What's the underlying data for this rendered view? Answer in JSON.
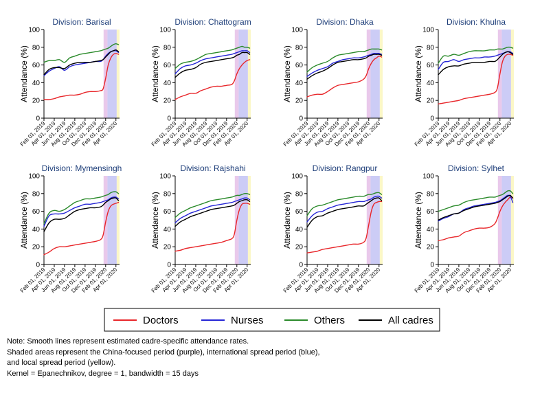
{
  "colors": {
    "doctors": "#e8262a",
    "nurses": "#2525d6",
    "others": "#2a8a2a",
    "all_cadres": "#000000",
    "china_period": "#e8c6ea",
    "international_period": "#c9c9f6",
    "local_period": "#fbf7c4",
    "title": "#1f3f7a"
  },
  "chart_data": {
    "type": "line",
    "ylabel": "Attendance (%)",
    "ylim": [
      0,
      100
    ],
    "yticks": [
      0,
      20,
      40,
      60,
      80,
      100
    ],
    "x_tick_labels": [
      "Feb 01, 2019",
      "Apr 01, 2019",
      "Jun 01, 2019",
      "Aug 01, 2019",
      "Oct 01, 2019",
      "Dec 01, 2019",
      "Feb 01, 2020",
      "Apr 01, 2020"
    ],
    "x_tick_months": [
      0,
      2,
      4,
      6,
      8,
      10,
      12,
      14
    ],
    "xlim_months": [
      0,
      14.7
    ],
    "periods": [
      {
        "name": "China-focused period",
        "color_key": "china_period",
        "start_month": 11.6,
        "end_month": 12.35
      },
      {
        "name": "International spread period",
        "color_key": "international_period",
        "start_month": 12.35,
        "end_month": 14.15
      },
      {
        "name": "Local spread period",
        "color_key": "local_period",
        "start_month": 14.15,
        "end_month": 14.7
      }
    ],
    "legend": {
      "placement": "bottom-center",
      "items": [
        {
          "key": "doctors",
          "label": "Doctors"
        },
        {
          "key": "nurses",
          "label": "Nurses"
        },
        {
          "key": "others",
          "label": "Others"
        },
        {
          "key": "all_cadres",
          "label": "All cadres"
        }
      ]
    },
    "x_months": [
      0,
      1,
      2,
      3,
      4,
      5,
      6,
      7,
      8,
      9,
      10,
      11,
      11.5,
      12,
      12.5,
      13,
      13.5,
      14,
      14.5
    ],
    "panels": [
      {
        "title": "Division: Barisal",
        "series": {
          "doctors": [
            21,
            21,
            22,
            24,
            25,
            26,
            26,
            27,
            29,
            30,
            30,
            31,
            33,
            45,
            60,
            68,
            72,
            73,
            72
          ],
          "nurses": [
            48,
            53,
            56,
            58,
            54,
            58,
            60,
            61,
            62,
            63,
            64,
            64,
            66,
            70,
            73,
            75,
            76,
            76,
            74
          ],
          "others": [
            63,
            65,
            65,
            66,
            63,
            68,
            70,
            72,
            73,
            74,
            75,
            76,
            77,
            78,
            79,
            81,
            83,
            84,
            83
          ],
          "all_cadres": [
            49,
            55,
            57,
            57,
            56,
            60,
            62,
            63,
            63,
            63,
            64,
            65,
            66,
            69,
            72,
            75,
            76,
            77,
            75
          ]
        }
      },
      {
        "title": "Division: Chattogram",
        "series": {
          "doctors": [
            21,
            24,
            26,
            28,
            28,
            31,
            33,
            35,
            36,
            36,
            37,
            38,
            42,
            50,
            56,
            60,
            63,
            65,
            66
          ],
          "nurses": [
            50,
            56,
            59,
            60,
            62,
            65,
            67,
            68,
            69,
            70,
            71,
            72,
            73,
            74,
            75,
            76,
            76,
            76,
            74
          ],
          "others": [
            56,
            61,
            63,
            64,
            66,
            69,
            72,
            73,
            74,
            75,
            76,
            77,
            78,
            79,
            80,
            81,
            80,
            80,
            79
          ],
          "all_cadres": [
            46,
            51,
            54,
            55,
            57,
            61,
            63,
            64,
            65,
            66,
            67,
            68,
            69,
            71,
            72,
            74,
            74,
            74,
            72
          ]
        }
      },
      {
        "title": "Division: Dhaka",
        "series": {
          "doctors": [
            24,
            26,
            27,
            27,
            30,
            34,
            37,
            38,
            39,
            40,
            41,
            44,
            48,
            56,
            62,
            66,
            68,
            70,
            69
          ],
          "nurses": [
            47,
            51,
            54,
            56,
            58,
            62,
            64,
            66,
            67,
            68,
            68,
            69,
            70,
            71,
            72,
            73,
            73,
            73,
            72
          ],
          "others": [
            52,
            57,
            60,
            62,
            64,
            68,
            71,
            72,
            73,
            74,
            75,
            75,
            76,
            77,
            78,
            78,
            78,
            78,
            77
          ],
          "all_cadres": [
            44,
            48,
            51,
            53,
            56,
            60,
            63,
            64,
            65,
            66,
            66,
            67,
            68,
            70,
            71,
            72,
            72,
            72,
            71
          ]
        }
      },
      {
        "title": "Division: Khulna",
        "series": {
          "doctors": [
            16,
            17,
            18,
            19,
            20,
            22,
            23,
            24,
            25,
            26,
            27,
            29,
            34,
            50,
            64,
            70,
            72,
            72,
            71
          ],
          "nurses": [
            55,
            63,
            64,
            66,
            64,
            66,
            67,
            68,
            68,
            69,
            69,
            70,
            71,
            72,
            73,
            74,
            75,
            75,
            73
          ],
          "others": [
            62,
            70,
            70,
            72,
            71,
            73,
            75,
            76,
            76,
            76,
            77,
            77,
            78,
            78,
            78,
            79,
            80,
            80,
            79
          ],
          "all_cadres": [
            49,
            55,
            58,
            59,
            59,
            61,
            62,
            63,
            63,
            63,
            64,
            64,
            66,
            69,
            72,
            74,
            75,
            74,
            72
          ]
        }
      },
      {
        "title": "Division: Mymensingh",
        "series": {
          "doctors": [
            11,
            14,
            18,
            20,
            20,
            21,
            22,
            23,
            24,
            25,
            26,
            28,
            33,
            48,
            60,
            66,
            68,
            69,
            70
          ],
          "nurses": [
            43,
            55,
            57,
            57,
            58,
            61,
            64,
            66,
            68,
            68,
            69,
            70,
            71,
            72,
            73,
            75,
            76,
            76,
            74
          ],
          "others": [
            46,
            58,
            61,
            60,
            62,
            66,
            70,
            72,
            74,
            74,
            75,
            76,
            77,
            78,
            79,
            81,
            82,
            82,
            80
          ],
          "all_cadres": [
            37,
            47,
            51,
            51,
            52,
            56,
            60,
            62,
            63,
            64,
            64,
            65,
            67,
            70,
            72,
            74,
            75,
            75,
            72
          ]
        }
      },
      {
        "title": "Division: Rajshahi",
        "series": {
          "doctors": [
            15,
            16,
            18,
            19,
            20,
            21,
            22,
            23,
            24,
            25,
            27,
            29,
            34,
            50,
            62,
            68,
            69,
            69,
            68
          ],
          "nurses": [
            47,
            52,
            55,
            58,
            60,
            62,
            64,
            66,
            67,
            68,
            69,
            70,
            71,
            72,
            73,
            74,
            75,
            75,
            73
          ],
          "others": [
            53,
            58,
            61,
            64,
            66,
            68,
            70,
            72,
            73,
            74,
            75,
            76,
            77,
            78,
            78,
            79,
            80,
            80,
            79
          ],
          "all_cadres": [
            43,
            48,
            51,
            54,
            56,
            58,
            60,
            62,
            63,
            64,
            65,
            66,
            67,
            69,
            71,
            72,
            73,
            73,
            71
          ]
        }
      },
      {
        "title": "Division: Rangpur",
        "series": {
          "doctors": [
            13,
            14,
            15,
            17,
            18,
            19,
            20,
            21,
            22,
            23,
            23,
            25,
            30,
            45,
            60,
            68,
            70,
            71,
            71
          ],
          "nurses": [
            48,
            55,
            59,
            60,
            63,
            65,
            67,
            68,
            69,
            70,
            71,
            71,
            72,
            73,
            74,
            76,
            77,
            77,
            75
          ],
          "others": [
            55,
            63,
            66,
            67,
            69,
            71,
            73,
            74,
            75,
            76,
            77,
            77,
            78,
            79,
            79,
            80,
            81,
            81,
            79
          ],
          "all_cadres": [
            42,
            50,
            54,
            55,
            58,
            60,
            62,
            63,
            64,
            65,
            66,
            66,
            68,
            70,
            72,
            74,
            75,
            75,
            72
          ]
        }
      },
      {
        "title": "Division: Sylhet",
        "series": {
          "doctors": [
            27,
            28,
            30,
            31,
            32,
            36,
            38,
            40,
            41,
            41,
            42,
            46,
            52,
            60,
            66,
            70,
            73,
            76,
            75
          ],
          "nurses": [
            49,
            52,
            54,
            57,
            58,
            62,
            64,
            66,
            67,
            68,
            69,
            70,
            71,
            72,
            74,
            76,
            78,
            77,
            70
          ],
          "others": [
            60,
            62,
            64,
            66,
            67,
            70,
            72,
            73,
            74,
            75,
            76,
            76,
            77,
            78,
            79,
            81,
            83,
            83,
            80
          ],
          "all_cadres": [
            50,
            53,
            55,
            57,
            58,
            61,
            63,
            65,
            66,
            67,
            68,
            69,
            70,
            71,
            73,
            75,
            77,
            78,
            75
          ]
        }
      }
    ]
  },
  "note": {
    "lines": [
      "Note: Smooth lines represent estimated cadre-specific attendance rates.",
      "Shaded areas represent the China-focused period (purple), international spread period (blue),",
      "and local spread period (yellow).",
      "Kernel = Epanechnikov, degree = 1, bandwidth = 15 days"
    ]
  }
}
